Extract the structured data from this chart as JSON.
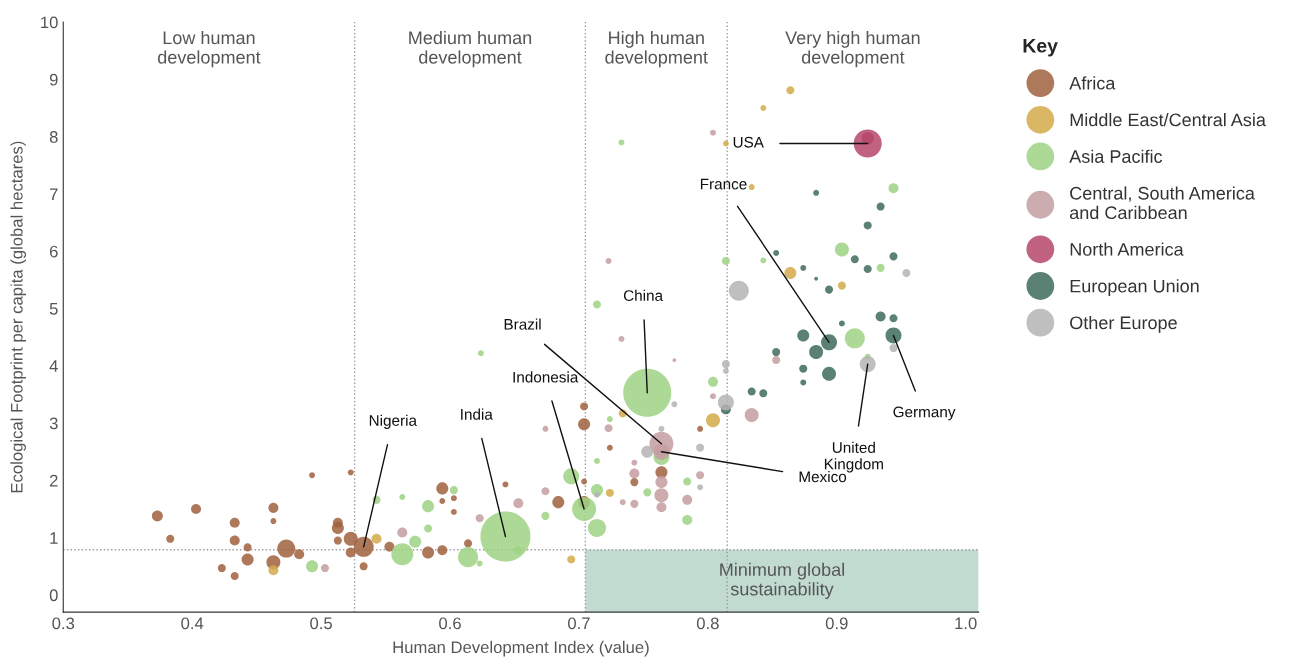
{
  "chart_data": {
    "type": "bubble",
    "xlabel": "Human Development Index (value)",
    "ylabel": "Ecological Footprint per capita (global hectares)",
    "legend_title": "Key",
    "xlim": [
      0.3,
      1.01
    ],
    "ylim": [
      -0.3,
      10
    ],
    "xticks": [
      0.3,
      0.4,
      0.5,
      0.6,
      0.7,
      0.8,
      0.9,
      {
        "value": 1.0,
        "label": "1.0"
      }
    ],
    "yticks": [
      0,
      1,
      2,
      3,
      4,
      5,
      6,
      7,
      8,
      9,
      10
    ],
    "grid": false,
    "legend": "right",
    "marker": "circle",
    "series": [
      {
        "name": "Africa",
        "color": "#a0613e",
        "x": [
          0.373,
          0.383,
          0.403,
          0.423,
          0.433,
          0.433,
          0.433,
          0.443,
          0.443,
          0.463,
          0.463,
          0.463,
          0.473,
          0.483,
          0.493,
          0.513,
          0.513,
          0.513,
          0.523,
          0.523,
          0.523,
          0.533,
          0.533,
          0.553,
          0.594,
          0.594,
          0.603,
          0.603,
          0.583,
          0.594,
          0.614,
          0.643,
          0.684,
          0.704,
          0.704,
          0.704,
          0.704,
          0.724,
          0.743,
          0.764,
          0.794
        ],
        "values": [
          1.38,
          0.98,
          1.5,
          0.47,
          1.26,
          0.95,
          0.33,
          0.83,
          0.62,
          1.52,
          1.29,
          0.57,
          0.81,
          0.71,
          2.09,
          1.26,
          1.17,
          0.95,
          2.14,
          0.98,
          0.74,
          0.84,
          0.5,
          0.84,
          1.86,
          1.64,
          1.69,
          1.45,
          0.74,
          0.78,
          0.9,
          1.93,
          1.62,
          3.29,
          2.98,
          1.98,
          1.62,
          2.57,
          1.97,
          2.14,
          2.9
        ],
        "sizes": [
          0.048,
          0.026,
          0.04,
          0.026,
          0.04,
          0.04,
          0.026,
          0.026,
          0.058,
          0.04,
          0.014,
          0.078,
          0.13,
          0.04,
          0.014,
          0.04,
          0.058,
          0.026,
          0.014,
          0.078,
          0.04,
          0.16,
          0.026,
          0.04,
          0.058,
          0.014,
          0.014,
          0.014,
          0.058,
          0.04,
          0.026,
          0.014,
          0.058,
          0.026,
          0.058,
          0.014,
          0.058,
          0.014,
          0.026,
          0.058,
          0.014
        ]
      },
      {
        "name": "Middle East/Central Asia",
        "color": "#d4aa4a",
        "x": [
          0.463,
          0.543,
          0.694,
          0.724,
          0.734,
          0.804,
          0.814,
          0.834,
          0.843,
          0.864,
          0.864,
          0.904
        ],
        "values": [
          0.43,
          0.98,
          0.62,
          1.78,
          3.17,
          3.05,
          7.88,
          7.12,
          8.5,
          8.81,
          5.62,
          5.4
        ],
        "sizes": [
          0.04,
          0.04,
          0.026,
          0.026,
          0.026,
          0.078,
          0.014,
          0.014,
          0.014,
          0.026,
          0.058,
          0.026
        ]
      },
      {
        "name": "Asia Pacific",
        "color": "#9fd284",
        "x": [
          0.493,
          0.543,
          0.563,
          0.563,
          0.573,
          0.583,
          0.583,
          0.603,
          0.614,
          0.623,
          0.624,
          0.643,
          0.653,
          0.674,
          0.694,
          0.704,
          0.714,
          0.714,
          0.714,
          0.714,
          0.724,
          0.733,
          0.753,
          0.753,
          0.764,
          0.784,
          0.784,
          0.804,
          0.814,
          0.843,
          0.904,
          0.914,
          0.924,
          0.934,
          0.944
        ],
        "values": [
          0.5,
          1.66,
          1.71,
          0.71,
          0.93,
          1.55,
          1.16,
          1.83,
          0.66,
          0.55,
          4.22,
          1.02,
          0.78,
          1.38,
          2.07,
          1.5,
          1.83,
          1.17,
          2.34,
          5.07,
          3.07,
          7.9,
          3.53,
          1.79,
          2.41,
          1.98,
          1.31,
          3.72,
          5.83,
          5.84,
          6.03,
          4.48,
          4.16,
          5.71,
          7.1
        ],
        "sizes": [
          0.058,
          0.026,
          0.014,
          0.194,
          0.058,
          0.058,
          0.026,
          0.026,
          0.16,
          0.014,
          0.014,
          1,
          0.026,
          0.026,
          0.102,
          0.23,
          0.058,
          0.13,
          0.014,
          0.026,
          0.014,
          0.014,
          0.92,
          0.026,
          0.102,
          0.026,
          0.04,
          0.04,
          0.026,
          0.014,
          0.078,
          0.16,
          0.014,
          0.026,
          0.04
        ]
      },
      {
        "name": "Central, South America\nand Caribbean",
        "color": "#c49ea1",
        "x": [
          0.503,
          0.563,
          0.623,
          0.653,
          0.674,
          0.674,
          0.723,
          0.723,
          0.733,
          0.734,
          0.743,
          0.743,
          0.743,
          0.764,
          0.764,
          0.764,
          0.764,
          0.764,
          0.774,
          0.784,
          0.794,
          0.804,
          0.804,
          0.834,
          0.853
        ],
        "values": [
          0.47,
          1.09,
          1.34,
          1.6,
          1.81,
          2.9,
          2.91,
          5.83,
          4.47,
          1.62,
          2.12,
          2.31,
          1.59,
          2.64,
          2.5,
          1.97,
          1.74,
          1.53,
          4.1,
          1.66,
          2.09,
          3.47,
          8.07,
          3.14,
          4.1
        ],
        "sizes": [
          0.026,
          0.04,
          0.026,
          0.04,
          0.026,
          0.014,
          0.026,
          0.014,
          0.014,
          0.014,
          0.04,
          0.014,
          0.026,
          0.23,
          0.102,
          0.058,
          0.078,
          0.04,
          0.006,
          0.04,
          0.026,
          0.014,
          0.014,
          0.078,
          0.026
        ]
      },
      {
        "name": "North America",
        "color": "#b5476a",
        "x": [
          0.924,
          0.924
        ],
        "values": [
          7.88,
          7.97
        ],
        "sizes": [
          0.314,
          0.058
        ]
      },
      {
        "name": "European Union",
        "color": "#3d6b5c",
        "x": [
          0.814,
          0.834,
          0.843,
          0.853,
          0.853,
          0.874,
          0.874,
          0.874,
          0.874,
          0.884,
          0.884,
          0.884,
          0.894,
          0.894,
          0.894,
          0.904,
          0.914,
          0.924,
          0.924,
          0.934,
          0.934,
          0.944,
          0.944,
          0.944
        ],
        "values": [
          3.24,
          3.55,
          3.52,
          4.24,
          5.97,
          5.71,
          4.53,
          3.95,
          3.71,
          5.52,
          7.02,
          4.24,
          4.41,
          3.86,
          5.33,
          4.74,
          5.86,
          6.45,
          5.69,
          6.78,
          4.86,
          4.83,
          4.53,
          5.91
        ],
        "sizes": [
          0.04,
          0.026,
          0.026,
          0.026,
          0.014,
          0.014,
          0.058,
          0.026,
          0.014,
          0.006,
          0.014,
          0.078,
          0.102,
          0.078,
          0.026,
          0.014,
          0.026,
          0.026,
          0.026,
          0.026,
          0.04,
          0.026,
          0.102,
          0.026
        ]
      },
      {
        "name": "Other Europe",
        "color": "#b4b4b4",
        "x": [
          0.714,
          0.753,
          0.764,
          0.774,
          0.794,
          0.794,
          0.814,
          0.814,
          0.814,
          0.824,
          0.924,
          0.944,
          0.954
        ],
        "values": [
          1.75,
          2.5,
          2.9,
          3.33,
          2.57,
          1.88,
          4.03,
          3.91,
          3.36,
          5.31,
          4.03,
          4.31,
          5.62
        ],
        "sizes": [
          0.014,
          0.058,
          0.014,
          0.014,
          0.026,
          0.014,
          0.026,
          0.014,
          0.102,
          0.16,
          0.102,
          0.026,
          0.026
        ]
      }
    ],
    "ref_lines": [
      {
        "axis": "x",
        "value": 0.526,
        "color": "#999999",
        "line_style": "dotted"
      },
      {
        "axis": "x",
        "value": 0.705,
        "color": "#999999",
        "line_style": "dotted"
      },
      {
        "axis": "x",
        "value": 0.815,
        "color": "#999999",
        "line_style": "dotted"
      },
      {
        "axis": "y",
        "value": 0.79,
        "color": "#999999",
        "line_style": "dotted"
      }
    ],
    "bands": [
      {
        "axis": "y",
        "from": -0.3,
        "to": 0.79,
        "label": "Minimum global\nsustainability",
        "color": "#c2dbd1"
      }
    ],
    "annotations": [
      "Low human\ndevelopment",
      "Medium human\ndevelopment",
      "High human\ndevelopment",
      "Very high human\ndevelopment",
      {
        "text": "Nigeria",
        "x": 0.533,
        "y": 0.84
      },
      {
        "text": "India",
        "x": 0.643,
        "y": 1.02
      },
      {
        "text": "Indonesia",
        "x": 0.704,
        "y": 1.5
      },
      {
        "text": "China",
        "x": 0.753,
        "y": 3.53
      },
      {
        "text": "Brazil",
        "x": 0.764,
        "y": 2.64
      },
      {
        "text": "Mexico",
        "x": 0.764,
        "y": 2.5
      },
      {
        "text": "USA",
        "x": 0.924,
        "y": 7.88
      },
      {
        "text": "France",
        "x": 0.894,
        "y": 4.41
      },
      {
        "text": "United\nKingdom",
        "x": 0.924,
        "y": 4.03
      },
      {
        "text": "Germany",
        "x": 0.944,
        "y": 4.53
      }
    ]
  }
}
